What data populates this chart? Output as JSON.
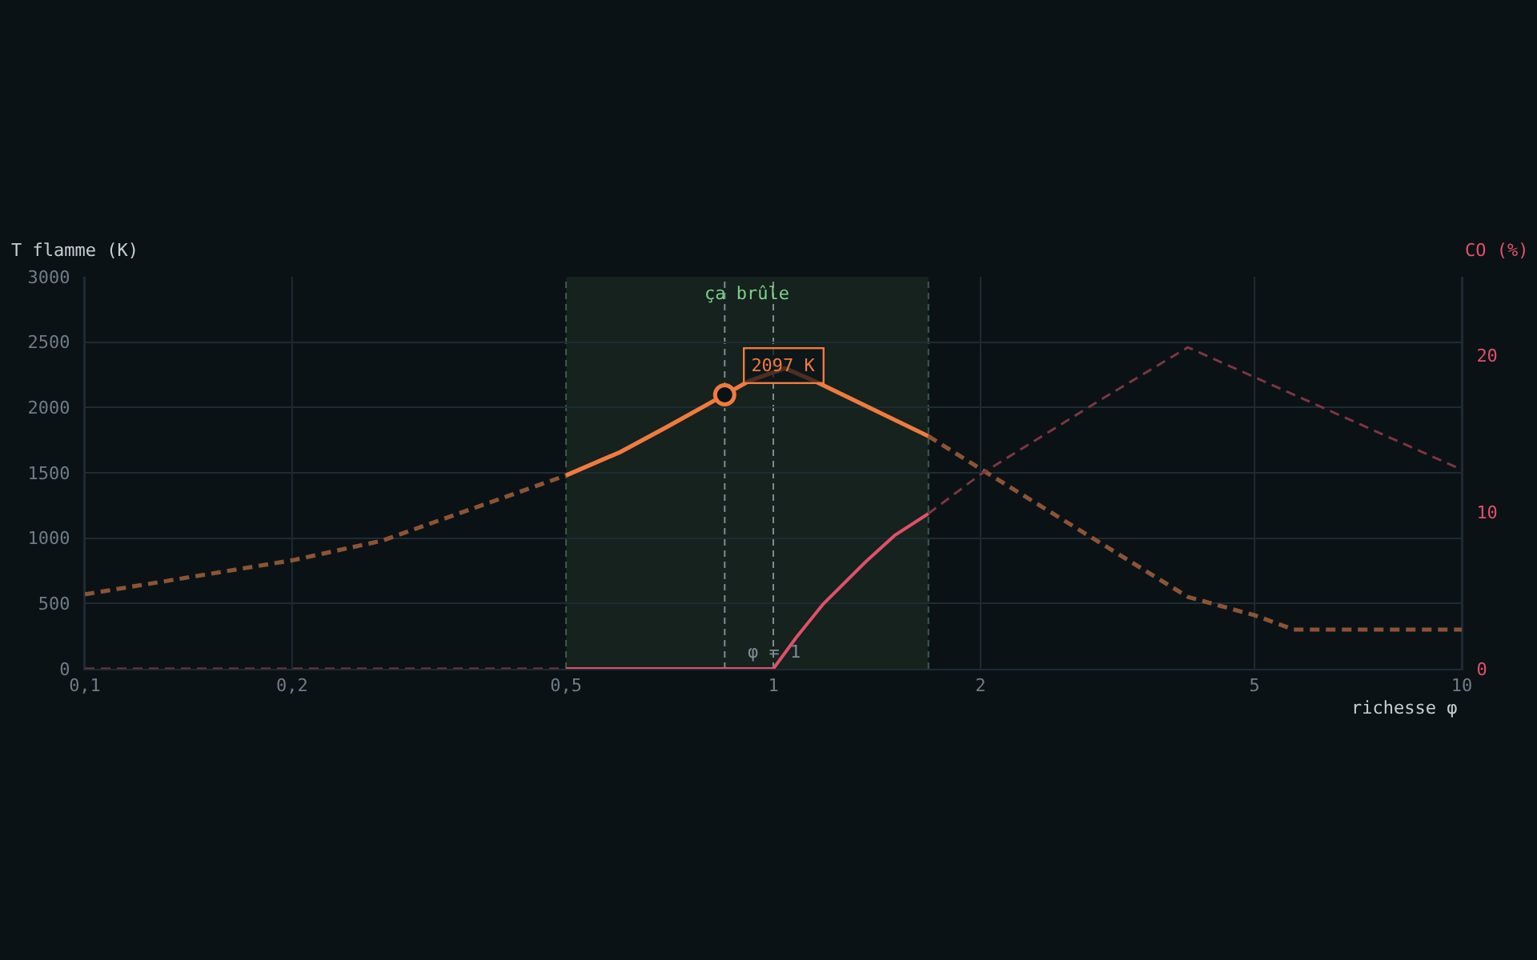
{
  "chart_data": {
    "type": "line",
    "xlabel": "richesse φ",
    "ylabel": "T flamme (K)",
    "y2label": "CO (%)",
    "log": "x",
    "xlim": [
      0.1,
      10
    ],
    "xticks": [
      {
        "value": 0.1,
        "label": "0,1"
      },
      {
        "value": 0.2,
        "label": "0,2"
      },
      {
        "value": 0.5,
        "label": "0,5"
      },
      1,
      2,
      5,
      10
    ],
    "ylim": [
      0,
      3000
    ],
    "yticks": [
      0,
      500,
      1000,
      1500,
      2000,
      2500,
      3000
    ],
    "y2lim": [
      0,
      25
    ],
    "y2ticks": [
      0,
      10,
      20
    ],
    "grid": true,
    "series": [
      {
        "x": [
          0.1,
          0.2,
          0.27,
          0.5
        ],
        "values": [
          570,
          830,
          980,
          1480
        ],
        "color": "#8c5436",
        "line_style": "dashed"
      },
      {
        "x": [
          0.5,
          0.6,
          0.7,
          0.85,
          0.92,
          1.04,
          1.15,
          1.68
        ],
        "values": [
          1480,
          1660,
          1850,
          2097,
          2200,
          2300,
          2200,
          1780
        ],
        "color": "#f07b3f",
        "line_style": "solid"
      },
      {
        "x": [
          1.68,
          2,
          4,
          5,
          5.7,
          10
        ],
        "values": [
          1780,
          1530,
          550,
          410,
          300,
          300
        ],
        "color": "#8c5436",
        "line_style": "dashed"
      },
      {
        "x": [
          0.1,
          0.5
        ],
        "values": [
          0,
          0
        ],
        "color": "#7d3642",
        "line_style": "dashed",
        "axis": "y2"
      },
      {
        "x": [
          0.5,
          1,
          1.08,
          1.18,
          1.36,
          1.5,
          1.68
        ],
        "values": [
          0,
          0,
          2.0,
          4.1,
          6.8,
          8.5,
          9.9
        ],
        "color": "#e0506a",
        "line_style": "solid",
        "axis": "y2"
      },
      {
        "x": [
          1.68,
          2,
          3,
          4,
          10
        ],
        "values": [
          9.9,
          12.4,
          17.2,
          20.5,
          12.7
        ],
        "color": "#7d3642",
        "line_style": "dashed",
        "axis": "y2"
      }
    ],
    "bands": [
      {
        "axis": "x",
        "from": 0.5,
        "to": 1.68,
        "label": "ça brûle",
        "color": "#15221e"
      }
    ],
    "ref_lines": [
      {
        "axis": "x",
        "value": 0.5,
        "color": "#3e5a4c",
        "line_style": "dashed"
      },
      {
        "axis": "x",
        "value": 0.85,
        "color": "#7f8c94",
        "line_style": "dashed"
      },
      {
        "axis": "x",
        "value": 1,
        "label": "φ = 1",
        "color": "#7f8c94",
        "line_style": "dashed"
      },
      {
        "axis": "x",
        "value": 1.68,
        "color": "#3e5a4c",
        "line_style": "dashed"
      }
    ],
    "annotations": [
      {
        "text": "2097 K",
        "x": 0.85,
        "y": 2097
      }
    ]
  }
}
